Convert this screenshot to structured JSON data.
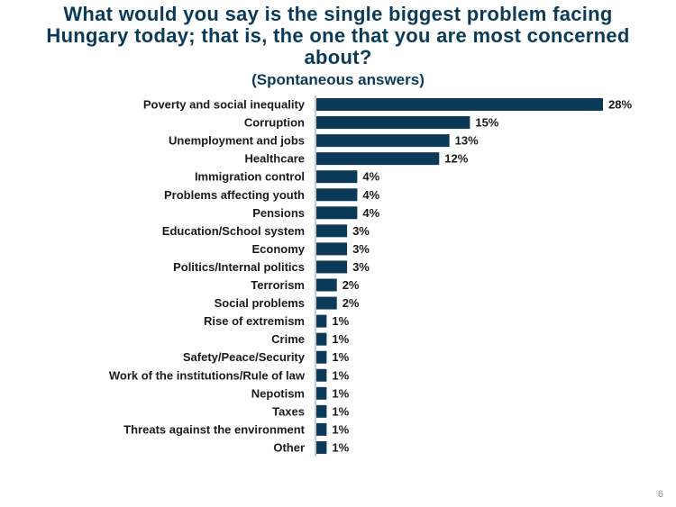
{
  "title": "What would you say is the single biggest problem facing Hungary today; that is, the one that you are most concerned about?",
  "subtitle": "(Spontaneous answers)",
  "page_number": "6",
  "colors": {
    "bar": "#0b3a59",
    "title": "#0b3a59",
    "text": "#1a1a1a"
  },
  "chart_data": {
    "type": "bar",
    "orientation": "horizontal",
    "categories": [
      "Poverty and social inequality",
      "Corruption",
      "Unemployment and jobs",
      "Healthcare",
      "Immigration control",
      "Problems affecting youth",
      "Pensions",
      "Education/School system",
      "Economy",
      "Politics/Internal politics",
      "Terrorism",
      "Social problems",
      "Rise of extremism",
      "Crime",
      "Safety/Peace/Security",
      "Work of the institutions/Rule of law",
      "Nepotism",
      "Taxes",
      "Threats against the environment",
      "Other"
    ],
    "values": [
      28,
      15,
      13,
      12,
      4,
      4,
      4,
      3,
      3,
      3,
      2,
      2,
      1,
      1,
      1,
      1,
      1,
      1,
      1,
      1
    ],
    "data_labels": [
      "28%",
      "15%",
      "13%",
      "12%",
      "4%",
      "4%",
      "4%",
      "3%",
      "3%",
      "3%",
      "2%",
      "2%",
      "1%",
      "1%",
      "1%",
      "1%",
      "1%",
      "1%",
      "1%",
      "1%"
    ],
    "xlim": [
      0,
      28
    ],
    "grid": false,
    "legend": false
  }
}
